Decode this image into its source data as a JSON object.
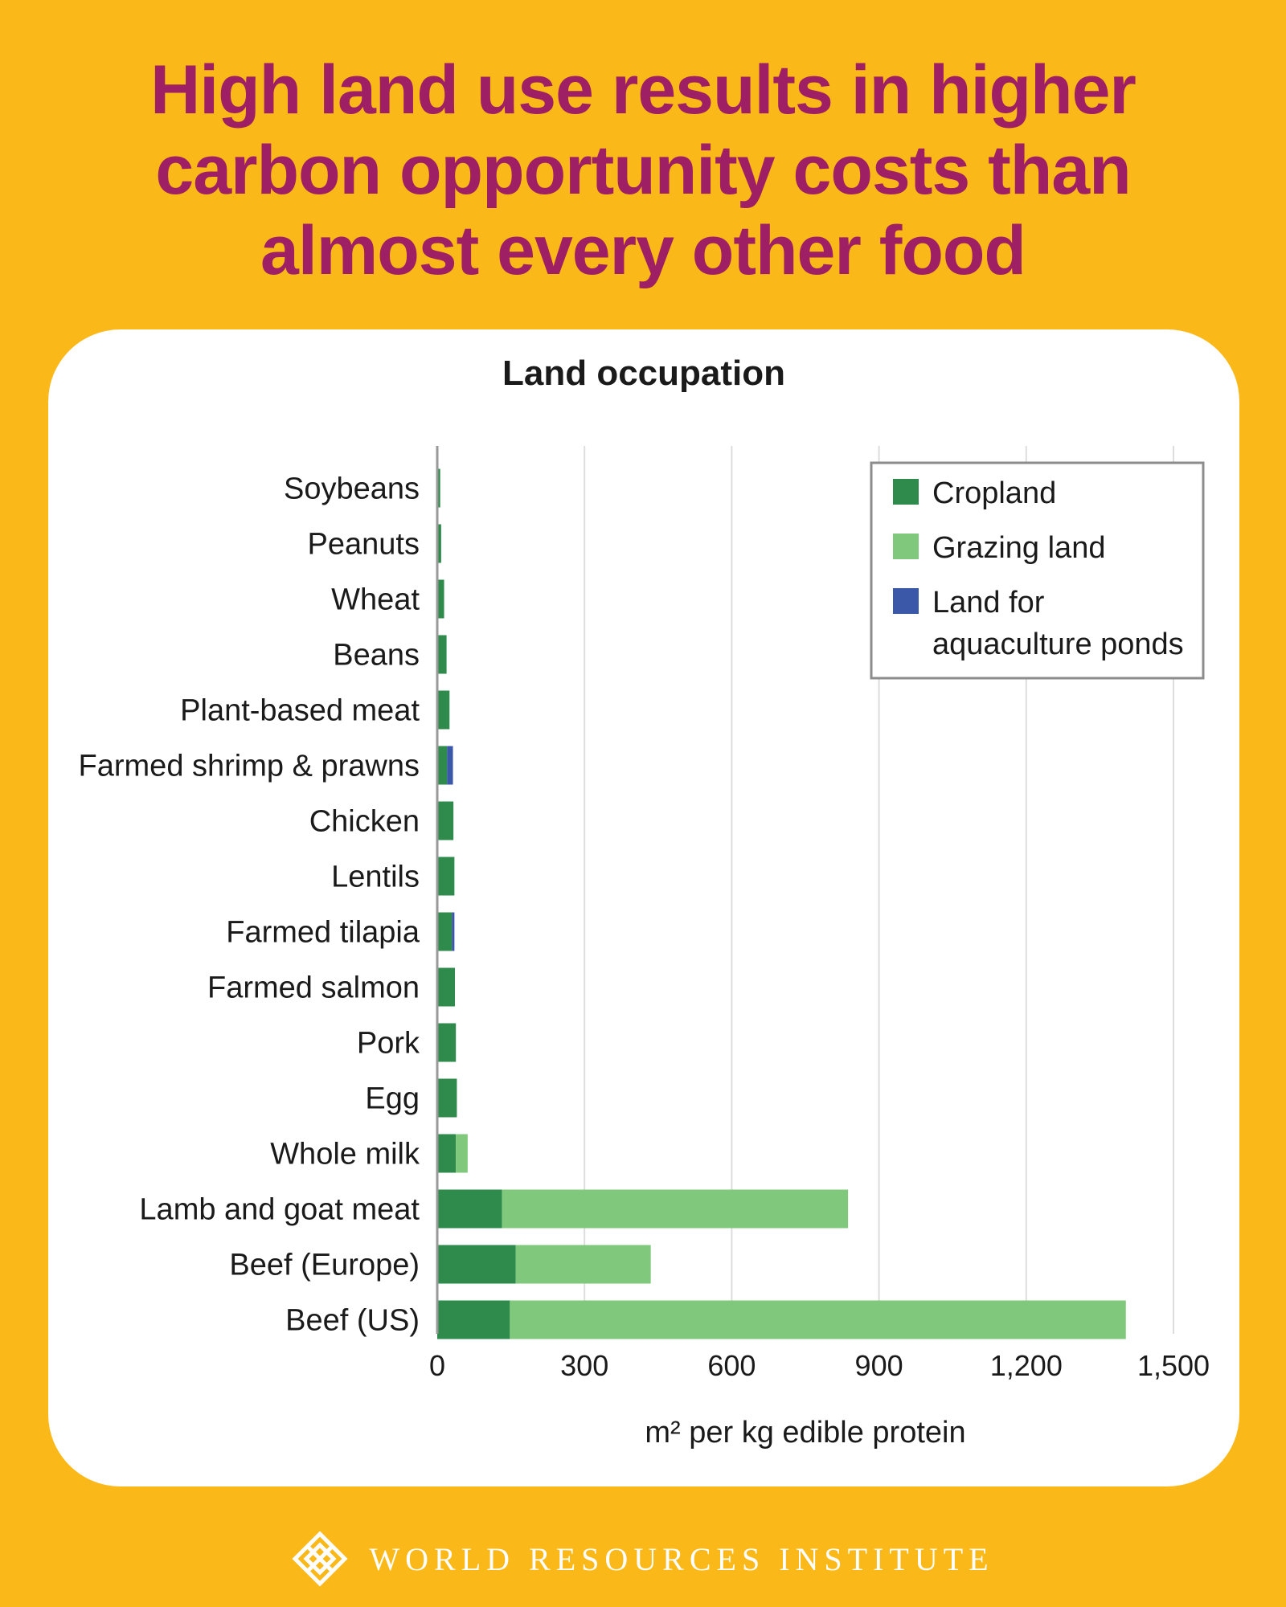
{
  "headline": {
    "line1": "High land use results in higher",
    "line2": "carbon opportunity costs than",
    "line3": "almost every other food"
  },
  "footer": {
    "org_name": "WORLD RESOURCES INSTITUTE",
    "logo_icon": "wri-knot-logo-icon"
  },
  "colors": {
    "background": "#FBB819",
    "headline": "#9E1F63",
    "cropland": "#2E8B4C",
    "grazing": "#80C97C",
    "aquaculture": "#3A57A8",
    "gridline": "#DDDDDD"
  },
  "chart_data": {
    "type": "bar",
    "orientation": "horizontal",
    "stacked": true,
    "title": "Land occupation",
    "xlabel": "m² per kg edible protein",
    "ylabel": "",
    "xlim": [
      0,
      1500
    ],
    "xticks": [
      0,
      300,
      600,
      900,
      1200,
      1500
    ],
    "xtick_labels": [
      "0",
      "300",
      "600",
      "900",
      "1,200",
      "1,500"
    ],
    "grid": true,
    "legend_position": "top-right",
    "categories": [
      "Soybeans",
      "Peanuts",
      "Wheat",
      "Beans",
      "Plant-based meat",
      "Farmed shrimp & prawns",
      "Chicken",
      "Lentils",
      "Farmed tilapia",
      "Farmed salmon",
      "Pork",
      "Egg",
      "Whole milk",
      "Lamb and goat meat",
      "Beef (Europe)",
      "Beef (US)"
    ],
    "series": [
      {
        "name": "Cropland",
        "values": [
          6,
          8,
          14,
          19,
          25,
          20,
          33,
          35,
          30,
          36,
          38,
          40,
          38,
          132,
          160,
          148
        ]
      },
      {
        "name": "Grazing land",
        "values": [
          0,
          0,
          0,
          0,
          0,
          0,
          0,
          0,
          0,
          0,
          0,
          0,
          24,
          705,
          275,
          1255
        ]
      },
      {
        "name": "Land for aquaculture ponds",
        "values": [
          0,
          0,
          0,
          0,
          0,
          12,
          0,
          0,
          5,
          0,
          0,
          0,
          0,
          0,
          0,
          0
        ]
      }
    ],
    "legend": {
      "cropland": "Cropland",
      "grazing": "Grazing land",
      "aquaculture_line1": "Land for",
      "aquaculture_line2": "aquaculture ponds"
    }
  }
}
